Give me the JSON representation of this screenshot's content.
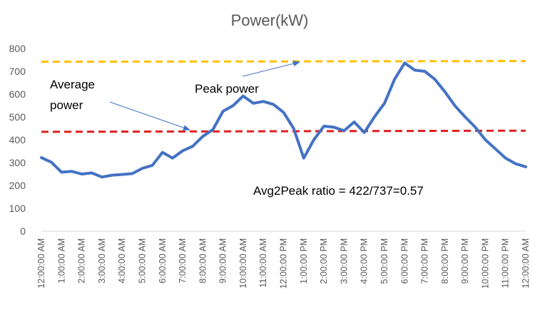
{
  "chart_data": {
    "type": "line",
    "title": "Power(kW)",
    "xlabel": "",
    "ylabel": "",
    "ylim": [
      0,
      800
    ],
    "yticks": [
      0,
      100,
      200,
      300,
      400,
      500,
      600,
      700,
      800
    ],
    "grid": false,
    "x_tick_labels": [
      "12:00:00 AM",
      "1:00:00 AM",
      "2:00:00 AM",
      "3:00:00 AM",
      "4:00:00 AM",
      "5:00:00 AM",
      "6:00:00 AM",
      "7:00:00 AM",
      "8:00:00 AM",
      "9:00:00 AM",
      "10:00:00 AM",
      "11:00:00 AM",
      "12:00:00 PM",
      "1:00:00 PM",
      "2:00:00 PM",
      "3:00:00 PM",
      "4:00:00 PM",
      "5:00:00 PM",
      "6:00:00 PM",
      "7:00:00 PM",
      "8:00:00 PM",
      "9:00:00 PM",
      "10:00:00 PM",
      "11:00:00 PM",
      "12:00:00 AM"
    ],
    "x_hours": [
      0,
      0.5,
      1,
      1.5,
      2,
      2.5,
      3,
      3.5,
      4,
      4.5,
      5,
      5.5,
      6,
      6.5,
      7,
      7.5,
      8,
      8.5,
      9,
      9.5,
      10,
      10.5,
      11,
      11.5,
      12,
      12.5,
      13,
      13.5,
      14,
      14.5,
      15,
      15.5,
      16,
      16.5,
      17,
      17.5,
      18,
      18.5,
      19,
      19.5,
      20,
      20.5,
      21,
      21.5,
      22,
      22.5,
      23,
      23.5,
      24
    ],
    "series": [
      {
        "color": "#4472C4",
        "values": [
          322,
          302,
          258,
          262,
          250,
          255,
          237,
          245,
          248,
          252,
          275,
          288,
          345,
          320,
          352,
          372,
          415,
          445,
          525,
          550,
          592,
          560,
          568,
          555,
          520,
          450,
          320,
          400,
          460,
          455,
          440,
          478,
          432,
          500,
          560,
          665,
          737,
          705,
          700,
          665,
          610,
          548,
          500,
          455,
          400,
          360,
          320,
          295,
          282
        ]
      }
    ],
    "reference_lines": [
      {
        "label": "Average power",
        "value": 435,
        "end_value": 440,
        "color": "#E02020",
        "style": "dashed"
      },
      {
        "label": "Peak power",
        "value": 742,
        "end_value": 745,
        "color": "#FFC000",
        "style": "dashed"
      }
    ],
    "annotations": {
      "average_label_line1": "Average",
      "average_label_line2": "power",
      "peak_label": "Peak power",
      "ratio_text": "Avg2Peak ratio = 422/737=0.57"
    }
  }
}
